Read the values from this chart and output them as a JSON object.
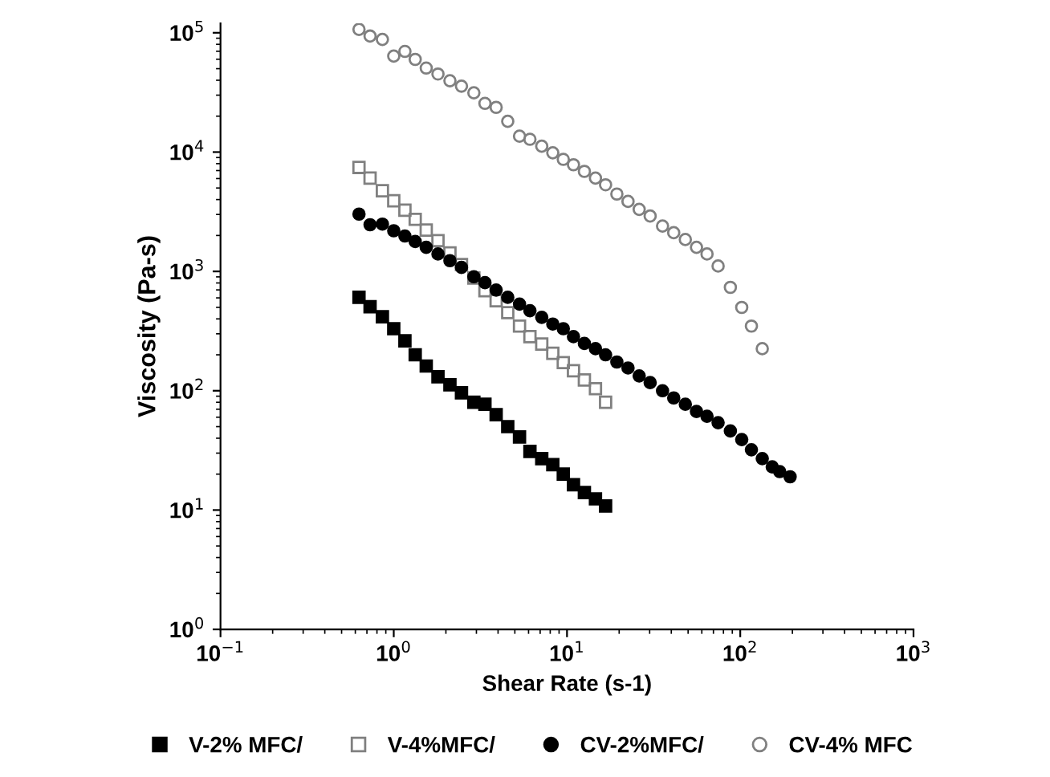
{
  "chart_data": {
    "type": "scatter",
    "xlabel": "Shear Rate (s-1)",
    "ylabel": "Viscosity (Pa-s)",
    "log": "xy",
    "grid": false,
    "legend": "bottom",
    "xlim": [
      0.1,
      1000
    ],
    "ylim": [
      1,
      120000
    ],
    "xticks": [
      {
        "value": 0.1,
        "label": "10$^{−1}$"
      },
      {
        "value": 1,
        "label": "10$^{0}$"
      },
      {
        "value": 10,
        "label": "10$^{1}$"
      },
      {
        "value": 100,
        "label": "10$^{2}$"
      },
      {
        "value": 1000,
        "label": "10$^{3}$"
      }
    ],
    "yticks": [
      {
        "value": 1,
        "label": "10$^{0}$"
      },
      {
        "value": 10,
        "label": "10$^{1}$"
      },
      {
        "value": 100,
        "label": "10$^{2}$"
      },
      {
        "value": 1000,
        "label": "10$^{3}$"
      },
      {
        "value": 10000,
        "label": "10$^{4}$"
      },
      {
        "value": 100000,
        "label": "10$^{5}$"
      }
    ],
    "series": [
      {
        "name": "V-2% MFC/",
        "color": "#000000",
        "marker": "square",
        "x": [
          0.63,
          0.73,
          0.86,
          1.0,
          1.16,
          1.33,
          1.54,
          1.8,
          2.11,
          2.46,
          2.9,
          3.36,
          3.9,
          4.55,
          5.32,
          6.11,
          7.15,
          8.28,
          9.52,
          10.9,
          12.6,
          14.6,
          16.7
        ],
        "values": [
          606,
          506,
          417,
          331,
          262,
          200,
          161,
          131,
          112,
          96,
          80,
          77,
          63,
          50,
          41,
          31,
          27,
          24,
          20,
          16.3,
          14,
          12.4,
          10.8
        ]
      },
      {
        "name": "V-4%MFC/",
        "color": "#808080",
        "marker": "square",
        "x": [
          0.63,
          0.73,
          0.86,
          1.0,
          1.16,
          1.33,
          1.54,
          1.8,
          2.11,
          2.46,
          2.9,
          3.36,
          3.9,
          4.55,
          5.32,
          6.11,
          7.15,
          8.28,
          9.52,
          10.9,
          12.6,
          14.6,
          16.7
        ],
        "values": [
          7440,
          6050,
          4740,
          3910,
          3260,
          2730,
          2220,
          1810,
          1430,
          1140,
          880,
          689,
          568,
          451,
          348,
          284,
          246,
          206,
          172,
          147,
          123,
          104,
          80
        ]
      },
      {
        "name": "CV-2%MFC/",
        "color": "#000000",
        "marker": "circle",
        "x": [
          0.63,
          0.73,
          0.86,
          1.0,
          1.16,
          1.33,
          1.54,
          1.8,
          2.11,
          2.46,
          2.9,
          3.36,
          3.9,
          4.55,
          5.32,
          6.11,
          7.15,
          8.28,
          9.52,
          10.9,
          12.6,
          14.6,
          16.7,
          19.4,
          22.5,
          26.1,
          30.2,
          35.6,
          41.3,
          48.2,
          55.9,
          64.3,
          74.5,
          87.7,
          102,
          116,
          134,
          153,
          169,
          194
        ],
        "values": [
          3020,
          2460,
          2490,
          2190,
          1980,
          1780,
          1590,
          1400,
          1230,
          1080,
          902,
          804,
          698,
          606,
          532,
          468,
          412,
          362,
          331,
          284,
          249,
          225,
          200,
          174,
          155,
          133,
          117,
          100,
          87,
          77,
          67,
          61,
          54,
          46,
          39,
          32,
          27,
          23,
          21,
          19
        ]
      },
      {
        "name": "CV-4% MFC",
        "color": "#808080",
        "marker": "circle",
        "x": [
          0.63,
          0.73,
          0.86,
          1.0,
          1.16,
          1.33,
          1.54,
          1.8,
          2.11,
          2.46,
          2.9,
          3.36,
          3.9,
          4.55,
          5.32,
          6.11,
          7.15,
          8.28,
          9.52,
          10.9,
          12.6,
          14.6,
          16.7,
          19.4,
          22.5,
          26.1,
          30.2,
          35.6,
          41.3,
          48.2,
          55.9,
          64.3,
          74.5,
          87.7,
          102,
          116,
          134
        ],
        "values": [
          106700,
          93800,
          87900,
          63700,
          69800,
          59800,
          50600,
          45100,
          39600,
          35700,
          31400,
          25600,
          23700,
          18100,
          13600,
          12800,
          11200,
          9860,
          8690,
          7830,
          6890,
          6050,
          5320,
          4450,
          3860,
          3310,
          2910,
          2400,
          2110,
          1850,
          1590,
          1400,
          1110,
          735,
          499,
          348,
          225
        ]
      }
    ]
  }
}
